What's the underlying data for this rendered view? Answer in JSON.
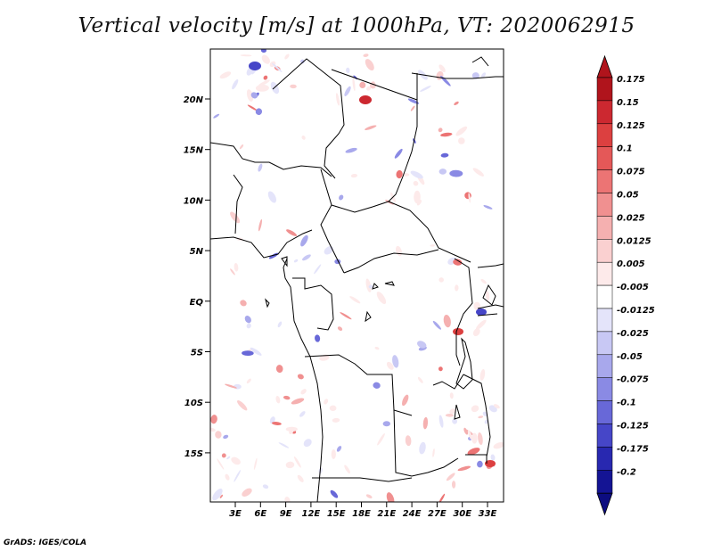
{
  "title": "Vertical velocity [m/s] at 1000hPa, VT: 2020062915",
  "credit": "GrADS: IGES/COLA",
  "map": {
    "lat_labels": [
      "20N",
      "15N",
      "10N",
      "5N",
      "EQ",
      "5S",
      "10S",
      "15S"
    ],
    "lon_labels": [
      "3E",
      "6E",
      "9E",
      "12E",
      "15E",
      "18E",
      "21E",
      "24E",
      "27E",
      "30E",
      "33E"
    ]
  },
  "colorbar": {
    "labels": [
      "0.175",
      "0.15",
      "0.125",
      "0.1",
      "0.075",
      "0.05",
      "0.025",
      "0.0125",
      "0.005",
      "-0.005",
      "-0.0125",
      "-0.025",
      "-0.05",
      "-0.075",
      "-0.1",
      "-0.125",
      "-0.175",
      "-0.2"
    ],
    "colors": [
      "#b0141c",
      "#cc2830",
      "#dc4040",
      "#e45858",
      "#ec7474",
      "#f09090",
      "#f5b0b0",
      "#fad0d0",
      "#fdeaea",
      "#ffffff",
      "#e4e4fa",
      "#c8c8f4",
      "#a8a8ec",
      "#8a8ae4",
      "#6868d8",
      "#4646c8",
      "#2828b0",
      "#141494"
    ]
  }
}
